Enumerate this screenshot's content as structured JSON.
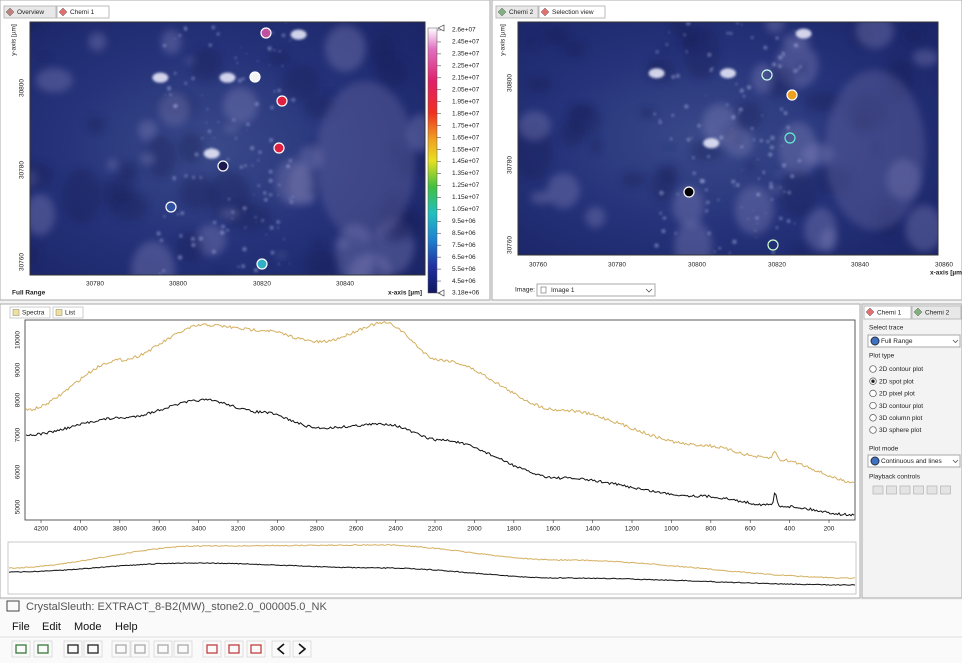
{
  "left_view": {
    "tabs": [
      "Overview",
      "Chemi 1"
    ],
    "y_axis_label": "y-axis [µm]",
    "y_ticks": [
      "30800",
      "30780",
      "30760"
    ],
    "x_ticks": [
      "30780",
      "30800",
      "30820",
      "30840"
    ],
    "trace_label": "Full Range",
    "x_axis_label": "x-axis [µm]",
    "colorbar_labels": [
      "2.6e+07",
      "2.45e+07",
      "2.35e+07",
      "2.25e+07",
      "2.15e+07",
      "2.05e+07",
      "1.95e+07",
      "1.85e+07",
      "1.75e+07",
      "1.65e+07",
      "1.55e+07",
      "1.45e+07",
      "1.35e+07",
      "1.25e+07",
      "1.15e+07",
      "1.05e+07",
      "9.5e+06",
      "8.5e+06",
      "7.5e+06",
      "6.5e+06",
      "5.5e+06",
      "4.5e+06",
      "3.18e+06"
    ]
  },
  "right_view": {
    "tabs": [
      "Chemi 2",
      "Selection view"
    ],
    "y_axis_label": "y-axis [µm]",
    "y_ticks": [
      "30800",
      "30780",
      "30760"
    ],
    "x_ticks": [
      "30760",
      "30780",
      "30800",
      "30820",
      "30840",
      "30860"
    ],
    "x_axis_label": "x-axis [µm]",
    "image_label": "Image:",
    "image_select": "Image 1"
  },
  "spectra": {
    "tabs": [
      "Spectra",
      "List"
    ],
    "y_ticks": [
      "10000",
      "9000",
      "8000",
      "7000",
      "6000",
      "5000"
    ],
    "x_ticks": [
      "4200",
      "4000",
      "3800",
      "3600",
      "3400",
      "3200",
      "3000",
      "2800",
      "2600",
      "2400",
      "2200",
      "2000",
      "1800",
      "1600",
      "1400",
      "1200",
      "1000",
      "800",
      "600",
      "400",
      "200"
    ]
  },
  "side_panel": {
    "tabs": [
      "Chemi 1",
      "Chemi 2"
    ],
    "select_trace_label": "Select trace",
    "trace": "Full Range",
    "plot_type_label": "Plot type",
    "plot_types": [
      "2D contour plot",
      "2D spot plot",
      "2D pixel plot",
      "3D contour plot",
      "3D column plot",
      "3D sphere plot"
    ],
    "plot_mode_label": "Plot mode",
    "plot_mode": "Continuous and lines",
    "playback_label": "Playback controls"
  },
  "window": {
    "title": "CrystalSleuth: EXTRACT_8-B2(MW)_stone2.0_000005.0_NK",
    "menu": [
      "File",
      "Edit",
      "Mode",
      "Help"
    ]
  }
}
